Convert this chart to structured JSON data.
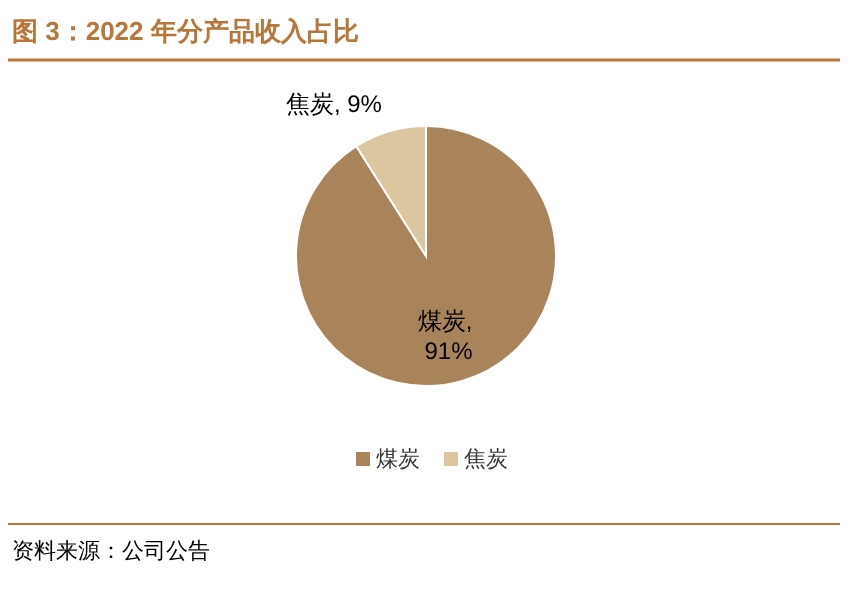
{
  "chart_data": {
    "type": "pie",
    "title": "图 3：2022 年分产品收入占比",
    "categories": [
      "煤炭",
      "焦炭"
    ],
    "values": [
      91,
      9
    ],
    "value_labels": [
      "煤炭, 91%",
      "焦炭, 9%"
    ],
    "colors": [
      "#a9845a",
      "#dcc69f"
    ],
    "legend": "bottom",
    "annotations": [
      "资料来源：公司公告"
    ]
  }
}
